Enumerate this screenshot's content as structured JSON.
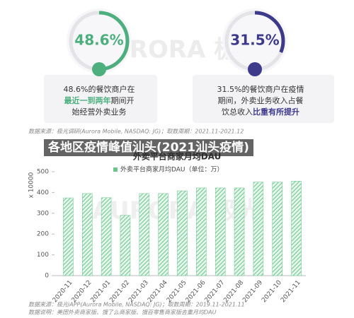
{
  "overlay_title": "各地区疫情峰值汕头(2021汕头疫情)",
  "watermark": "AURORA 极光",
  "chart_data": [
    {
      "type": "gauge",
      "values": [
        48.6
      ],
      "value_labels": [
        "48.6%"
      ],
      "color": "#4caf7d",
      "caption": [
        [
          {
            "text": "48.6%的餐饮商户在"
          }
        ],
        [
          {
            "text": "最近一到两年",
            "bold": true
          },
          {
            "text": "期间开"
          }
        ],
        [
          {
            "text": "始经营外卖业务"
          }
        ]
      ]
    },
    {
      "type": "gauge",
      "values": [
        31.5
      ],
      "value_labels": [
        "31.5%"
      ],
      "color": "#3d3a8c",
      "caption": [
        [
          {
            "text": "31.5%的餐饮商户在疫情"
          }
        ],
        [
          {
            "text": "期间，外卖业务收入占餐"
          }
        ],
        [
          {
            "text": "饮总收入"
          },
          {
            "text": "比重有所提升",
            "bold": true
          }
        ]
      ]
    },
    {
      "type": "bar",
      "title": "外卖平台商家月均DAU",
      "source_top": "数据来源：极光调研(Aurora Mobile, NASDAQ: JG)；取数周期：2021.11-2021.12",
      "source_bottom": "数据来源：极光iAPP(Aurora Mobile, NASDAQ: JG)；取数周期：2019.11-2021.11",
      "note": "数据说明：美团外卖商家版、饿了么商家版、饿百零售商家版去重月均DAU",
      "y_label": "x 10000",
      "categories": [
        "2020-11",
        "2020-12",
        "2021-01",
        "2021-02",
        "2021-03",
        "2021-04",
        "2021-05",
        "2021-06",
        "2021-07",
        "2021-08",
        "2021-09",
        "2021-10",
        "2021-11"
      ],
      "series": [
        {
          "name": "外卖平台商家月均DAU（单位：万）",
          "color": "#6cc58f",
          "values": [
            374,
            395,
            375,
            290,
            395,
            395,
            408,
            422,
            422,
            422,
            450,
            450,
            455
          ]
        }
      ],
      "ylim": [
        0,
        500
      ],
      "yticks": [
        0,
        100,
        200,
        300,
        400,
        500
      ],
      "grid": false
    }
  ]
}
